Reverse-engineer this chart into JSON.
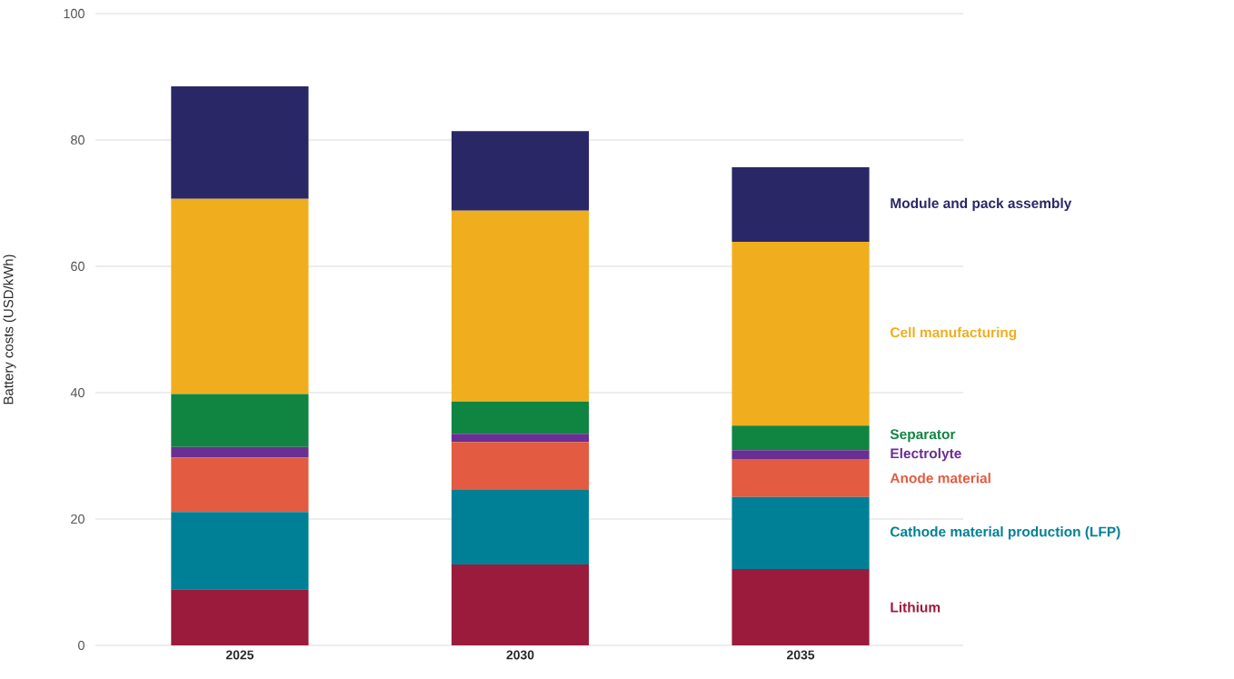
{
  "chart_data": {
    "type": "bar",
    "stacked": true,
    "ylabel": "Battery costs (USD/kWh)",
    "categories": [
      "2025",
      "2030",
      "2035"
    ],
    "ylim": [
      0,
      100
    ],
    "yticks": [
      0,
      20,
      40,
      60,
      80,
      100
    ],
    "grid": "y",
    "series": [
      {
        "name": "Lithium",
        "color": "#9b1b3c",
        "values": [
          8.9,
          12.8,
          12.1
        ]
      },
      {
        "name": "Cathode material production (LFP)",
        "color": "#008096",
        "values": [
          12.2,
          11.8,
          11.4
        ]
      },
      {
        "name": "Anode material",
        "color": "#e35b40",
        "values": [
          8.6,
          7.6,
          6.0
        ]
      },
      {
        "name": "Electrolyte",
        "color": "#6a2f93",
        "values": [
          1.7,
          1.3,
          1.4
        ]
      },
      {
        "name": "Separator",
        "color": "#108541",
        "values": [
          8.4,
          5.1,
          3.9
        ]
      },
      {
        "name": "Cell manufacturing",
        "color": "#f0ae1e",
        "values": [
          30.9,
          30.2,
          29.1
        ]
      },
      {
        "name": "Module and pack assembly",
        "color": "#2a2766",
        "values": [
          17.8,
          12.6,
          11.8
        ]
      }
    ]
  }
}
